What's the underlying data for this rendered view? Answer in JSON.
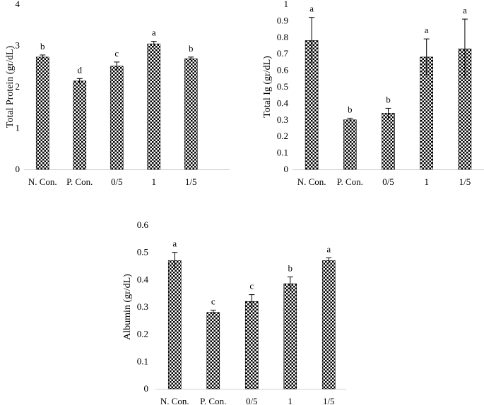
{
  "chart_data": [
    {
      "type": "bar",
      "categories": [
        "N. Con.",
        "P. Con.",
        "0/5",
        "1",
        "1/5"
      ],
      "values": [
        2.72,
        2.14,
        2.5,
        3.04,
        2.68
      ],
      "errors": [
        0.05,
        0.06,
        0.1,
        0.06,
        0.04
      ],
      "letters": [
        "b",
        "d",
        "c",
        "a",
        "b"
      ],
      "ylabel": "Total Protein (gr/dL)",
      "ylim": [
        0,
        4
      ],
      "yticks": [
        "0",
        "1",
        "2",
        "3",
        "4"
      ],
      "grid": false
    },
    {
      "type": "bar",
      "categories": [
        "N. Con.",
        "P. Con.",
        "0/5",
        "1",
        "1/5"
      ],
      "values": [
        0.78,
        0.3,
        0.34,
        0.68,
        0.73
      ],
      "errors": [
        0.14,
        0.01,
        0.03,
        0.11,
        0.18
      ],
      "letters": [
        "a",
        "b",
        "b",
        "a",
        "a"
      ],
      "ylabel": "Total Ig (gr/dL)",
      "ylim": [
        0,
        1
      ],
      "yticks": [
        "0",
        "0.1",
        "0.2",
        "0.3",
        "0.4",
        "0.5",
        "0.6",
        "0.7",
        "0.8",
        "0.9",
        "1"
      ],
      "grid": false
    },
    {
      "type": "bar",
      "categories": [
        "N. Con.",
        "P. Con.",
        "0/5",
        "1",
        "1/5"
      ],
      "values": [
        0.47,
        0.28,
        0.32,
        0.385,
        0.47
      ],
      "errors": [
        0.03,
        0.008,
        0.025,
        0.025,
        0.01
      ],
      "letters": [
        "a",
        "c",
        "c",
        "b",
        "a"
      ],
      "ylabel": "Albumin (gr/dL)",
      "ylim": [
        0,
        0.6
      ],
      "yticks": [
        "0",
        "0.1",
        "0.2",
        "0.3",
        "0.4",
        "0.5",
        "0.6"
      ],
      "grid": false
    }
  ]
}
